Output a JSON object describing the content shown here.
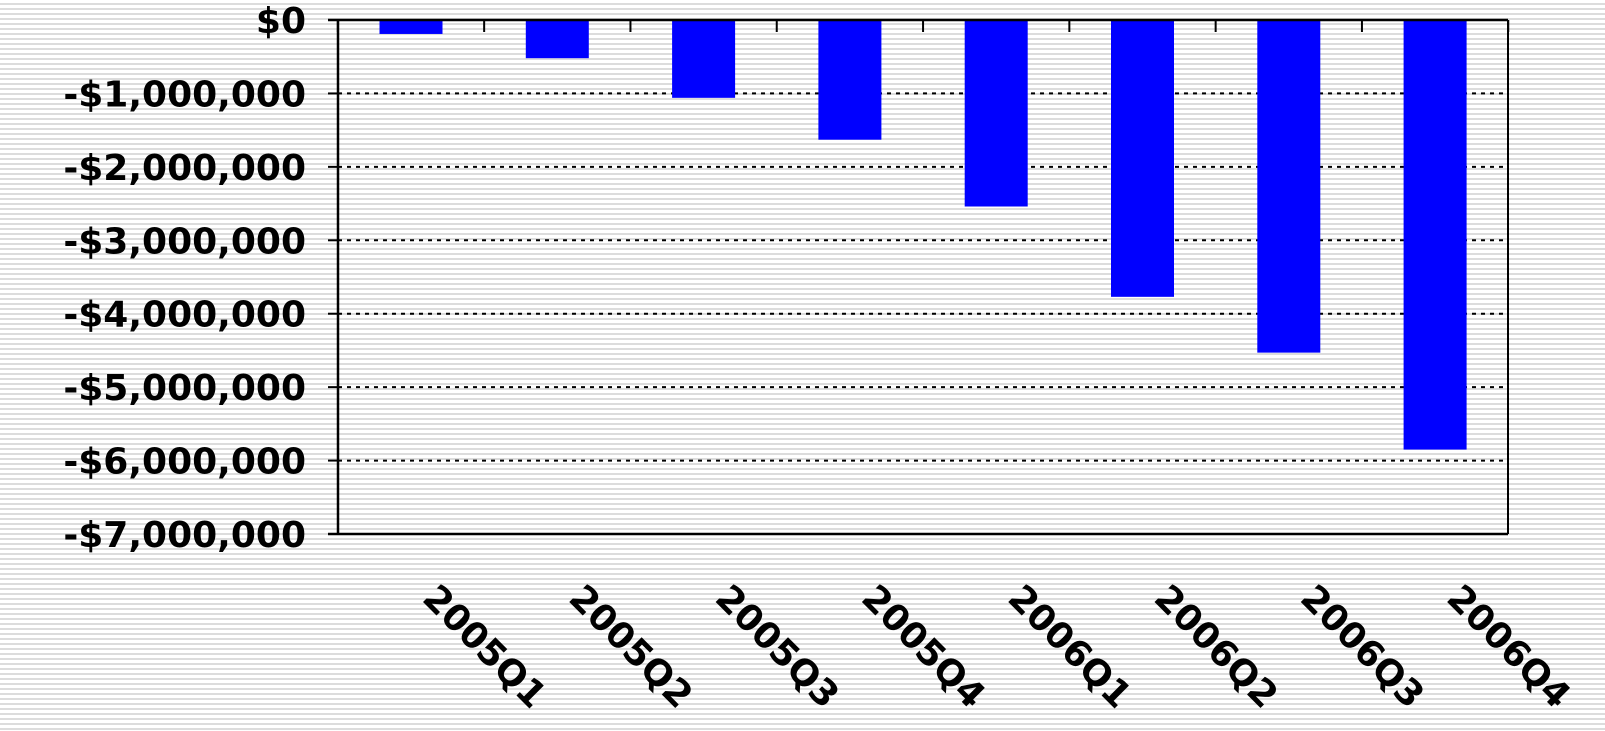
{
  "chart_data": {
    "type": "bar",
    "title": "",
    "xlabel": "",
    "ylabel": "",
    "categories": [
      "2005Q1",
      "2005Q2",
      "2005Q3",
      "2005Q4",
      "2006Q1",
      "2006Q2",
      "2006Q3",
      "2006Q4"
    ],
    "values": [
      -190000,
      -520000,
      -1060000,
      -1630000,
      -2540000,
      -3770000,
      -4530000,
      -5850000
    ],
    "ylim": [
      -7000000,
      0
    ],
    "yticks": [
      0,
      -1000000,
      -2000000,
      -3000000,
      -4000000,
      -5000000,
      -6000000,
      -7000000
    ],
    "ytick_labels": [
      "$0",
      "-$1,000,000",
      "-$2,000,000",
      "-$3,000,000",
      "-$4,000,000",
      "-$5,000,000",
      "-$6,000,000",
      "-$7,000,000"
    ],
    "grid": "horizontal dotted",
    "legend": "none",
    "bar_color": "#0000ff"
  }
}
